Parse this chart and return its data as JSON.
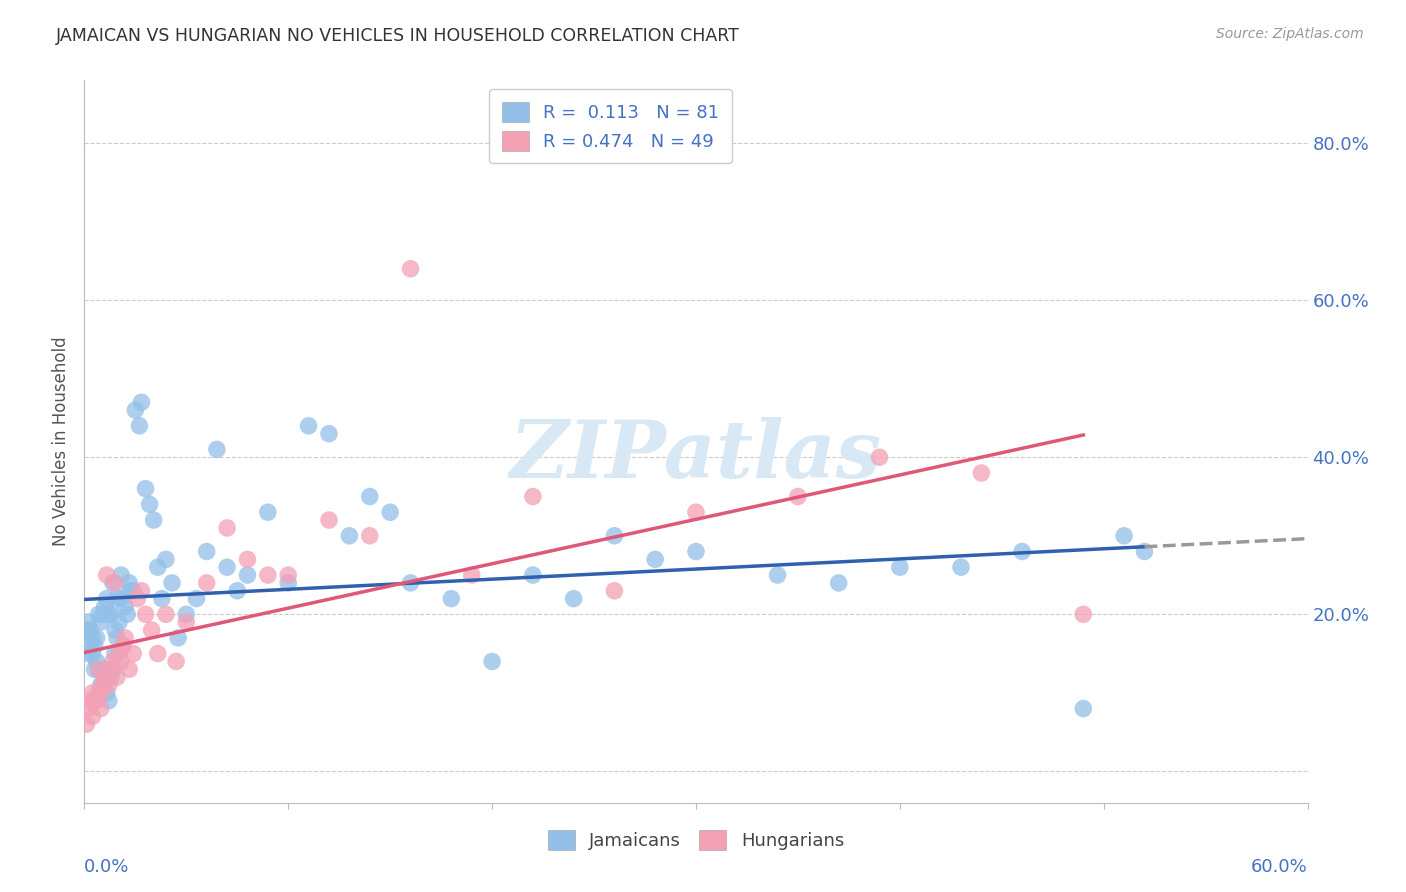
{
  "title": "JAMAICAN VS HUNGARIAN NO VEHICLES IN HOUSEHOLD CORRELATION CHART",
  "source": "Source: ZipAtlas.com",
  "ylabel": "No Vehicles in Household",
  "xlim": [
    0.0,
    0.6
  ],
  "ylim": [
    -0.04,
    0.88
  ],
  "yticks": [
    0.0,
    0.2,
    0.4,
    0.6,
    0.8
  ],
  "ytick_labels": [
    "",
    "20.0%",
    "40.0%",
    "60.0%",
    "80.0%"
  ],
  "jamaicans_R": 0.113,
  "jamaicans_N": 81,
  "hungarians_R": 0.474,
  "hungarians_N": 49,
  "jamaican_color": "#92c0e8",
  "hungarian_color": "#f4a0b5",
  "jamaican_line_color": "#3060b0",
  "hungarian_line_color": "#e05878",
  "dash_line_color": "#999999",
  "background_color": "#ffffff",
  "grid_color": "#cccccc",
  "title_color": "#333333",
  "axis_label_color": "#4472c4",
  "watermark_color": "#d8e8f5",
  "watermark_text": "ZIPatlas",
  "jamaican_x": [
    0.001,
    0.002,
    0.002,
    0.003,
    0.003,
    0.004,
    0.004,
    0.005,
    0.005,
    0.006,
    0.006,
    0.007,
    0.007,
    0.008,
    0.008,
    0.009,
    0.009,
    0.01,
    0.01,
    0.011,
    0.011,
    0.012,
    0.012,
    0.013,
    0.013,
    0.014,
    0.014,
    0.015,
    0.015,
    0.016,
    0.016,
    0.017,
    0.018,
    0.018,
    0.019,
    0.02,
    0.021,
    0.022,
    0.022,
    0.024,
    0.025,
    0.027,
    0.028,
    0.03,
    0.032,
    0.034,
    0.036,
    0.038,
    0.04,
    0.043,
    0.046,
    0.05,
    0.055,
    0.06,
    0.065,
    0.07,
    0.075,
    0.08,
    0.09,
    0.1,
    0.11,
    0.12,
    0.13,
    0.14,
    0.15,
    0.16,
    0.18,
    0.2,
    0.22,
    0.24,
    0.26,
    0.28,
    0.3,
    0.34,
    0.37,
    0.4,
    0.43,
    0.46,
    0.49,
    0.51,
    0.52
  ],
  "jamaican_y": [
    0.18,
    0.19,
    0.15,
    0.16,
    0.18,
    0.15,
    0.17,
    0.13,
    0.16,
    0.14,
    0.17,
    0.2,
    0.13,
    0.19,
    0.11,
    0.2,
    0.11,
    0.21,
    0.13,
    0.22,
    0.1,
    0.2,
    0.09,
    0.2,
    0.12,
    0.24,
    0.13,
    0.15,
    0.18,
    0.17,
    0.22,
    0.19,
    0.22,
    0.25,
    0.16,
    0.21,
    0.2,
    0.23,
    0.24,
    0.23,
    0.46,
    0.44,
    0.47,
    0.36,
    0.34,
    0.32,
    0.26,
    0.22,
    0.27,
    0.24,
    0.17,
    0.2,
    0.22,
    0.28,
    0.41,
    0.26,
    0.23,
    0.25,
    0.33,
    0.24,
    0.44,
    0.43,
    0.3,
    0.35,
    0.33,
    0.24,
    0.22,
    0.14,
    0.25,
    0.22,
    0.3,
    0.27,
    0.28,
    0.25,
    0.24,
    0.26,
    0.26,
    0.28,
    0.08,
    0.3,
    0.28
  ],
  "hungarian_x": [
    0.001,
    0.002,
    0.003,
    0.004,
    0.004,
    0.005,
    0.006,
    0.007,
    0.007,
    0.008,
    0.008,
    0.009,
    0.01,
    0.011,
    0.012,
    0.013,
    0.014,
    0.015,
    0.016,
    0.017,
    0.018,
    0.019,
    0.02,
    0.022,
    0.024,
    0.026,
    0.028,
    0.03,
    0.033,
    0.036,
    0.04,
    0.045,
    0.05,
    0.06,
    0.07,
    0.08,
    0.09,
    0.1,
    0.12,
    0.14,
    0.16,
    0.19,
    0.22,
    0.26,
    0.3,
    0.35,
    0.39,
    0.44,
    0.49
  ],
  "hungarian_y": [
    0.06,
    0.08,
    0.09,
    0.07,
    0.1,
    0.09,
    0.09,
    0.1,
    0.13,
    0.1,
    0.08,
    0.11,
    0.12,
    0.25,
    0.11,
    0.13,
    0.14,
    0.24,
    0.12,
    0.15,
    0.14,
    0.16,
    0.17,
    0.13,
    0.15,
    0.22,
    0.23,
    0.2,
    0.18,
    0.15,
    0.2,
    0.14,
    0.19,
    0.24,
    0.31,
    0.27,
    0.25,
    0.25,
    0.32,
    0.3,
    0.64,
    0.25,
    0.35,
    0.23,
    0.33,
    0.35,
    0.4,
    0.38,
    0.2
  ]
}
